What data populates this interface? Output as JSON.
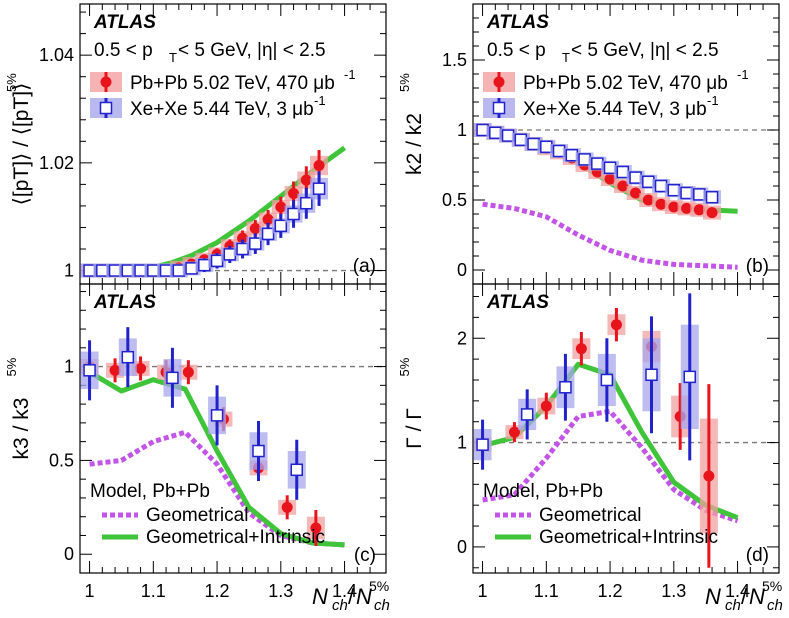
{
  "colors": {
    "pbpb": "#e8141c",
    "pbpb_box": "#f2a0a0",
    "xexe": "#2222cc",
    "xexe_box": "#a7a7ec",
    "geom": "#c255e8",
    "intr": "#3fc43a",
    "ref_line": "#777777"
  },
  "figure": {
    "x_label_main": "N",
    "x_label_sub": "ch",
    "x_label_den": "N",
    "x_label_den_sub": "ch",
    "x_label_den_sup": "5%"
  },
  "chart_data": [
    {
      "id": "a",
      "type": "scatter",
      "tag": "(a)",
      "atlas": "ATLAS",
      "kin_label": "0.5 < p",
      "kin_sub": "T",
      "kin_tail": " < 5 GeV, |η| < 2.5",
      "ylabel": "⟨[p_T]⟩ / ⟨[p_T]⟩^5%",
      "ylabel_display": "⟨[pT]⟩ / ⟨[pT]⟩",
      "ylabel_sup": "5%",
      "xlim": [
        0.985,
        1.465
      ],
      "ylim": [
        0.9975,
        1.0495
      ],
      "yticks": [
        1,
        1.02,
        1.04
      ],
      "ytick_labels": [
        "1",
        "1.02",
        "1.04"
      ],
      "xticks": [
        1,
        1.1,
        1.2,
        1.3,
        1.4
      ],
      "xtick_labels": [
        "1",
        "1.1",
        "1.2",
        "1.3",
        "1.4"
      ],
      "ref_y": 1,
      "legend": [
        {
          "label": "Pb+Pb 5.02 TeV, 470 μb",
          "sup": "-1",
          "marker": "circle"
        },
        {
          "label": "Xe+Xe 5.44 TeV, 3 μb",
          "sup": "-1",
          "marker": "square"
        }
      ],
      "series": [
        {
          "name": "Pb+Pb 5.02 TeV",
          "x": [
            1.0,
            1.02,
            1.04,
            1.06,
            1.08,
            1.1,
            1.12,
            1.14,
            1.16,
            1.18,
            1.2,
            1.22,
            1.24,
            1.26,
            1.28,
            1.3,
            1.32,
            1.34,
            1.36
          ],
          "y": [
            1.0,
            1.0,
            1.0,
            1.0,
            1.0,
            1.0,
            1.0,
            1.0005,
            1.0012,
            1.002,
            1.003,
            1.0045,
            1.006,
            1.0078,
            1.0095,
            1.0118,
            1.0143,
            1.0168,
            1.0195
          ],
          "err": [
            0.0005,
            0.0005,
            0.0005,
            0.0005,
            0.0005,
            0.0005,
            0.0005,
            0.0005,
            0.0006,
            0.0006,
            0.0007,
            0.0008,
            0.0009,
            0.001,
            0.0011,
            0.0012,
            0.0014,
            0.0016,
            0.0018
          ]
        },
        {
          "name": "Xe+Xe 5.44 TeV",
          "x": [
            1.0,
            1.02,
            1.04,
            1.06,
            1.08,
            1.1,
            1.12,
            1.14,
            1.16,
            1.18,
            1.2,
            1.22,
            1.24,
            1.26,
            1.28,
            1.3,
            1.32,
            1.34,
            1.36
          ],
          "y": [
            1.0,
            1.0,
            1.0,
            1.0,
            1.0,
            1.0,
            1.0,
            1.0,
            1.0004,
            1.001,
            1.0018,
            1.003,
            1.004,
            1.005,
            1.0068,
            1.0083,
            1.0105,
            1.0125,
            1.0152
          ],
          "err": [
            0.0006,
            0.0006,
            0.0006,
            0.0006,
            0.0006,
            0.0006,
            0.0006,
            0.0006,
            0.0007,
            0.0008,
            0.0009,
            0.001,
            0.0011,
            0.0012,
            0.0013,
            0.0014,
            0.0016,
            0.0018,
            0.002
          ]
        }
      ],
      "models": [
        {
          "name": "Geometrical+Intrinsic",
          "x": [
            1.0,
            1.05,
            1.1,
            1.13,
            1.16,
            1.2,
            1.25,
            1.3,
            1.35,
            1.4
          ],
          "y": [
            1.0,
            1.0,
            1.0006,
            1.0015,
            1.0028,
            1.0052,
            1.0092,
            1.0138,
            1.0185,
            1.0228
          ]
        }
      ]
    },
    {
      "id": "b",
      "type": "scatter",
      "tag": "(b)",
      "atlas": "ATLAS",
      "kin_label": "0.5 < p",
      "kin_sub": "T",
      "kin_tail": " < 5 GeV, |η| < 2.5",
      "ylabel": "k_2 / k_2^5%",
      "ylabel_display": "k2 / k2",
      "ylabel_sup": "5%",
      "xlim": [
        0.985,
        1.465
      ],
      "ylim": [
        -0.1,
        1.9
      ],
      "yticks": [
        0,
        0.5,
        1,
        1.5
      ],
      "ytick_labels": [
        "0",
        "0.5",
        "1",
        "1.5"
      ],
      "xticks": [
        1,
        1.1,
        1.2,
        1.3,
        1.4
      ],
      "xtick_labels": [
        "1",
        "1.1",
        "1.2",
        "1.3",
        "1.4"
      ],
      "ref_y": 1,
      "legend": [
        {
          "label": "Pb+Pb 5.02 TeV, 470 μb",
          "sup": "-1",
          "marker": "circle"
        },
        {
          "label": "Xe+Xe 5.44 TeV, 3 μb",
          "sup": "-1",
          "marker": "square"
        }
      ],
      "series": [
        {
          "name": "Pb+Pb 5.02 TeV",
          "x": [
            1.0,
            1.02,
            1.04,
            1.06,
            1.08,
            1.1,
            1.12,
            1.14,
            1.16,
            1.18,
            1.2,
            1.22,
            1.24,
            1.26,
            1.28,
            1.3,
            1.32,
            1.34,
            1.36
          ],
          "y": [
            1.0,
            0.98,
            0.96,
            0.93,
            0.9,
            0.87,
            0.84,
            0.8,
            0.75,
            0.7,
            0.65,
            0.6,
            0.55,
            0.5,
            0.47,
            0.45,
            0.44,
            0.43,
            0.41
          ],
          "err": [
            0.01,
            0.01,
            0.01,
            0.01,
            0.01,
            0.01,
            0.01,
            0.01,
            0.01,
            0.01,
            0.01,
            0.01,
            0.01,
            0.01,
            0.01,
            0.01,
            0.01,
            0.01,
            0.02
          ]
        },
        {
          "name": "Xe+Xe 5.44 TeV",
          "x": [
            1.0,
            1.02,
            1.04,
            1.06,
            1.08,
            1.1,
            1.12,
            1.14,
            1.16,
            1.18,
            1.2,
            1.22,
            1.24,
            1.26,
            1.28,
            1.3,
            1.32,
            1.34,
            1.36
          ],
          "y": [
            1.0,
            0.98,
            0.96,
            0.93,
            0.9,
            0.88,
            0.85,
            0.82,
            0.79,
            0.76,
            0.73,
            0.7,
            0.66,
            0.63,
            0.6,
            0.57,
            0.55,
            0.54,
            0.52
          ],
          "err": [
            0.015,
            0.015,
            0.015,
            0.015,
            0.015,
            0.015,
            0.015,
            0.015,
            0.015,
            0.015,
            0.015,
            0.015,
            0.015,
            0.02,
            0.02,
            0.02,
            0.02,
            0.02,
            0.025
          ]
        }
      ],
      "models": [
        {
          "name": "Geometrical",
          "x": [
            1.0,
            1.05,
            1.1,
            1.15,
            1.2,
            1.25,
            1.3,
            1.35,
            1.4
          ],
          "y": [
            0.47,
            0.44,
            0.38,
            0.25,
            0.14,
            0.07,
            0.04,
            0.03,
            0.02
          ]
        },
        {
          "name": "Geometrical+Intrinsic",
          "x": [
            1.0,
            1.05,
            1.1,
            1.15,
            1.2,
            1.25,
            1.3,
            1.35,
            1.4
          ],
          "y": [
            1.0,
            0.95,
            0.88,
            0.77,
            0.62,
            0.5,
            0.45,
            0.43,
            0.42
          ]
        }
      ]
    },
    {
      "id": "c",
      "type": "scatter",
      "tag": "(c)",
      "atlas": "ATLAS",
      "ylabel": "k_3 / k_3^5%",
      "ylabel_display": "k3 / k3",
      "ylabel_sup": "5%",
      "xlim": [
        0.985,
        1.465
      ],
      "ylim": [
        -0.1,
        1.44
      ],
      "yticks": [
        0,
        0.5,
        1
      ],
      "ytick_labels": [
        "0",
        "0.5",
        "1"
      ],
      "xticks": [
        1,
        1.1,
        1.2,
        1.3,
        1.4
      ],
      "xtick_labels": [
        "1",
        "1.1",
        "1.2",
        "1.3",
        "1.4"
      ],
      "ref_y": 1,
      "model_title": "Model, Pb+Pb",
      "model_legend": [
        "Geometrical",
        "Geometrical+Intrinsic"
      ],
      "series": [
        {
          "name": "Pb+Pb 5.02 TeV",
          "x": [
            1.0,
            1.04,
            1.08,
            1.12,
            1.155,
            1.21,
            1.265,
            1.31,
            1.355
          ],
          "y": [
            1.0,
            0.98,
            0.99,
            0.97,
            0.97,
            0.72,
            0.46,
            0.25,
            0.14
          ],
          "err": [
            0.04,
            0.04,
            0.04,
            0.04,
            0.04,
            0.04,
            0.04,
            0.04,
            0.06
          ]
        },
        {
          "name": "Xe+Xe 5.44 TeV",
          "x": [
            1.0,
            1.06,
            1.13,
            1.2,
            1.265,
            1.325
          ],
          "y": [
            0.98,
            1.05,
            0.94,
            0.74,
            0.55,
            0.45
          ],
          "err": [
            0.1,
            0.1,
            0.1,
            0.1,
            0.1,
            0.1
          ]
        }
      ],
      "models": [
        {
          "name": "Geometrical",
          "x": [
            1.0,
            1.05,
            1.1,
            1.15,
            1.2,
            1.25,
            1.3,
            1.35,
            1.4
          ],
          "y": [
            0.48,
            0.5,
            0.6,
            0.65,
            0.48,
            0.22,
            0.1,
            0.06,
            0.05
          ]
        },
        {
          "name": "Geometrical+Intrinsic",
          "x": [
            1.0,
            1.05,
            1.1,
            1.15,
            1.2,
            1.25,
            1.3,
            1.35,
            1.4
          ],
          "y": [
            0.97,
            0.87,
            0.93,
            0.88,
            0.55,
            0.25,
            0.11,
            0.06,
            0.05
          ]
        }
      ]
    },
    {
      "id": "d",
      "type": "scatter",
      "tag": "(d)",
      "atlas": "ATLAS",
      "ylabel": "Γ / Γ^5%",
      "ylabel_display": "Γ / Γ",
      "ylabel_sup": "5%",
      "xlim": [
        0.985,
        1.465
      ],
      "ylim": [
        -0.25,
        2.52
      ],
      "yticks": [
        0,
        1,
        2
      ],
      "ytick_labels": [
        "0",
        "1",
        "2"
      ],
      "xticks": [
        1,
        1.1,
        1.2,
        1.3,
        1.4
      ],
      "xtick_labels": [
        "1",
        "1.1",
        "1.2",
        "1.3",
        "1.4"
      ],
      "ref_y": 1,
      "model_title": "Model, Pb+Pb",
      "model_legend": [
        "Geometrical",
        "Geometrical+Intrinsic"
      ],
      "series": [
        {
          "name": "Pb+Pb 5.02 TeV",
          "x": [
            1.0,
            1.05,
            1.1,
            1.155,
            1.21,
            1.265,
            1.31,
            1.355
          ],
          "y": [
            0.98,
            1.1,
            1.35,
            1.9,
            2.13,
            1.92,
            1.25,
            0.68
          ],
          "err": [
            0.06,
            0.06,
            0.08,
            0.1,
            0.1,
            0.15,
            0.2,
            0.55
          ]
        },
        {
          "name": "Xe+Xe 5.44 TeV",
          "x": [
            1.0,
            1.07,
            1.13,
            1.195,
            1.265,
            1.325
          ],
          "y": [
            0.98,
            1.27,
            1.53,
            1.6,
            1.65,
            1.63
          ],
          "err": [
            0.15,
            0.15,
            0.2,
            0.25,
            0.35,
            0.5
          ]
        }
      ],
      "models": [
        {
          "name": "Geometrical",
          "x": [
            1.0,
            1.05,
            1.1,
            1.15,
            1.2,
            1.25,
            1.3,
            1.35,
            1.4
          ],
          "y": [
            0.45,
            0.5,
            0.85,
            1.25,
            1.3,
            0.95,
            0.55,
            0.35,
            0.25
          ]
        },
        {
          "name": "Geometrical+Intrinsic",
          "x": [
            1.0,
            1.05,
            1.1,
            1.15,
            1.2,
            1.25,
            1.3,
            1.35,
            1.4
          ],
          "y": [
            0.97,
            1.05,
            1.35,
            1.75,
            1.65,
            1.1,
            0.62,
            0.4,
            0.28
          ]
        }
      ]
    }
  ]
}
